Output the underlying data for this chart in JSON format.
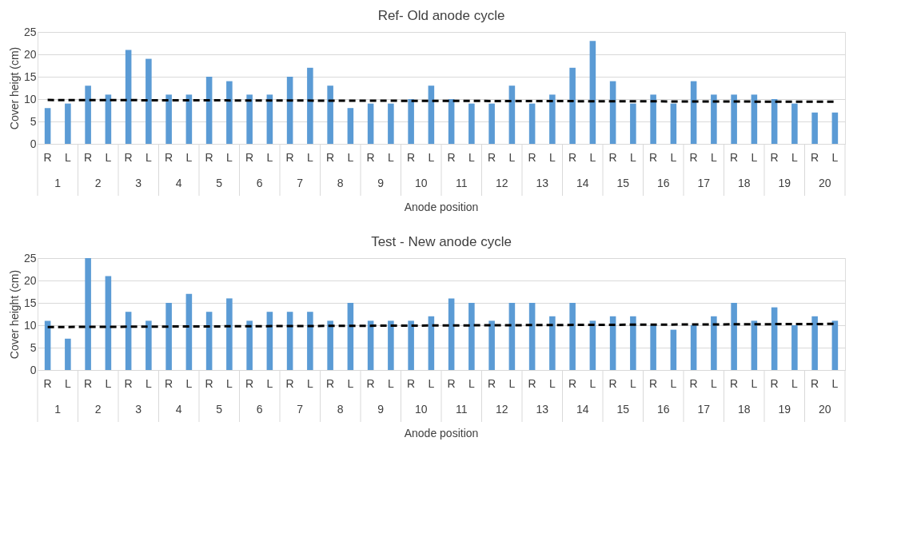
{
  "chart_data": [
    {
      "type": "bar",
      "title": "Ref- Old anode cycle",
      "xlabel": "Anode position",
      "ylabel": "Cover heigt (cm)",
      "categories": [
        "R",
        "L",
        "R",
        "L",
        "R",
        "L",
        "R",
        "L",
        "R",
        "L",
        "R",
        "L",
        "R",
        "L",
        "R",
        "L",
        "R",
        "L",
        "R",
        "L",
        "R",
        "L",
        "R",
        "L",
        "R",
        "L",
        "R",
        "L",
        "R",
        "L",
        "R",
        "L",
        "R",
        "L",
        "R",
        "L",
        "R",
        "L",
        "R",
        "L"
      ],
      "annotations": [
        "1",
        "2",
        "3",
        "4",
        "5",
        "6",
        "7",
        "8",
        "9",
        "10",
        "11",
        "12",
        "13",
        "14",
        "15",
        "16",
        "17",
        "18",
        "19",
        "20"
      ],
      "series": [
        {
          "color": "#5b9bd5",
          "values": [
            8,
            9,
            13,
            11,
            21,
            19,
            11,
            11,
            15,
            14,
            11,
            11,
            15,
            17,
            13,
            8,
            9,
            9,
            10,
            13,
            10,
            9,
            9,
            13,
            9,
            11,
            17,
            23,
            14,
            9,
            11,
            9,
            14,
            11,
            11,
            11,
            10,
            9,
            7,
            7
          ]
        },
        {
          "type": "line",
          "color": "#000000",
          "line_style": "dashed",
          "values": [
            9.8,
            null,
            null,
            null,
            null,
            null,
            null,
            null,
            null,
            null,
            null,
            null,
            null,
            null,
            null,
            null,
            null,
            null,
            null,
            null,
            null,
            null,
            null,
            null,
            null,
            null,
            null,
            null,
            null,
            null,
            null,
            null,
            null,
            null,
            null,
            null,
            null,
            null,
            null,
            9.4
          ]
        }
      ],
      "ylim": [
        0,
        25
      ],
      "yticks": [
        0,
        5,
        10,
        15,
        20,
        25
      ],
      "grid": "y"
    },
    {
      "type": "bar",
      "title": "Test - New anode cycle",
      "xlabel": "Anode position",
      "ylabel": "Cover height (cm)",
      "categories": [
        "R",
        "L",
        "R",
        "L",
        "R",
        "L",
        "R",
        "L",
        "R",
        "L",
        "R",
        "L",
        "R",
        "L",
        "R",
        "L",
        "R",
        "L",
        "R",
        "L",
        "R",
        "L",
        "R",
        "L",
        "R",
        "L",
        "R",
        "L",
        "R",
        "L",
        "R",
        "L",
        "R",
        "L",
        "R",
        "L",
        "R",
        "L",
        "R",
        "L"
      ],
      "annotations": [
        "1",
        "2",
        "3",
        "4",
        "5",
        "6",
        "7",
        "8",
        "9",
        "10",
        "11",
        "12",
        "13",
        "14",
        "15",
        "16",
        "17",
        "18",
        "19",
        "20"
      ],
      "series": [
        {
          "color": "#5b9bd5",
          "values": [
            11,
            7,
            25,
            21,
            13,
            11,
            15,
            17,
            13,
            16,
            11,
            13,
            13,
            13,
            11,
            15,
            11,
            11,
            11,
            12,
            16,
            15,
            11,
            15,
            15,
            12,
            15,
            11,
            12,
            12,
            10,
            9,
            10,
            12,
            15,
            11,
            14,
            10,
            12,
            11
          ]
        },
        {
          "type": "line",
          "color": "#000000",
          "line_style": "dashed",
          "values": [
            9.6,
            null,
            null,
            null,
            null,
            null,
            null,
            null,
            null,
            null,
            null,
            null,
            null,
            null,
            null,
            null,
            null,
            null,
            null,
            null,
            null,
            null,
            null,
            null,
            null,
            null,
            null,
            null,
            null,
            null,
            null,
            null,
            null,
            null,
            null,
            null,
            null,
            null,
            null,
            10.3
          ]
        }
      ],
      "ylim": [
        0,
        25
      ],
      "yticks": [
        0,
        5,
        10,
        15,
        20,
        25
      ],
      "grid": "y"
    }
  ]
}
